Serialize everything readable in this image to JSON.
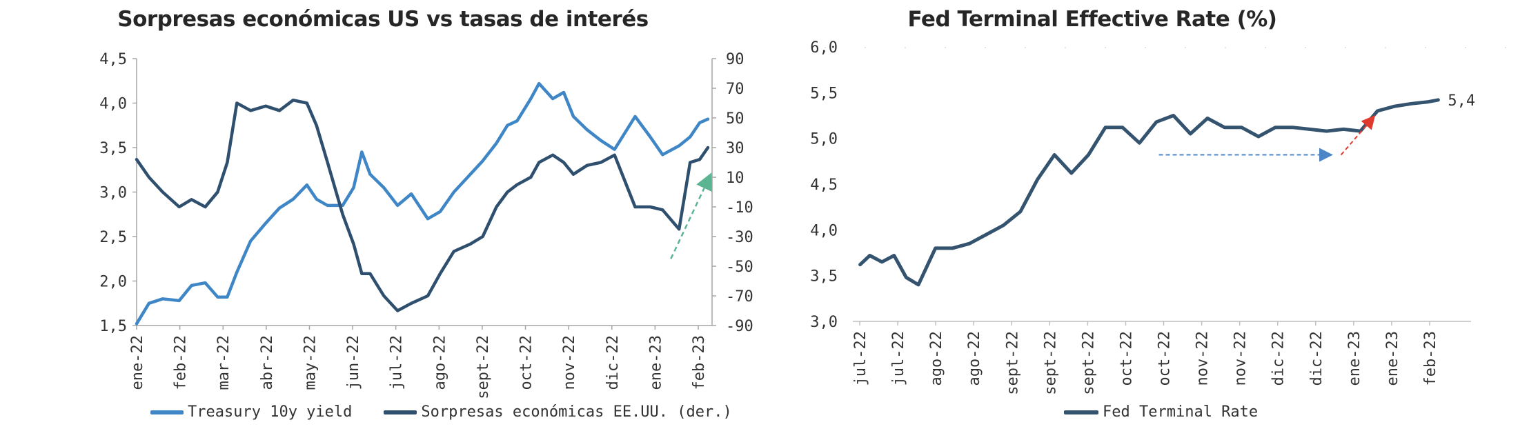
{
  "chart_data": [
    {
      "type": "line",
      "title": "Sorpresas económicas US vs tasas de interés",
      "x_ticks": [
        "ene-22",
        "feb-22",
        "mar-22",
        "abr-22",
        "may-22",
        "jun-22",
        "jul-22",
        "ago-22",
        "sept-22",
        "oct-22",
        "nov-22",
        "dic-22",
        "ene-23",
        "feb-23"
      ],
      "left_axis": {
        "ticks": [
          "1,5",
          "2,0",
          "2,5",
          "3,0",
          "3,5",
          "4,0",
          "4,5"
        ],
        "ylim": [
          1.5,
          4.5
        ]
      },
      "right_axis": {
        "ticks": [
          "-90",
          "-70",
          "-50",
          "-30",
          "-10",
          "10",
          "30",
          "50",
          "70",
          "90"
        ],
        "ylim": [
          -90,
          90
        ]
      },
      "series": [
        {
          "name": "Treasury 10y yield",
          "axis": "left",
          "color": "#3f86c6",
          "x": [
            "2022-01-01",
            "2022-01-10",
            "2022-01-20",
            "2022-02-01",
            "2022-02-10",
            "2022-02-20",
            "2022-03-01",
            "2022-03-08",
            "2022-03-15",
            "2022-03-25",
            "2022-04-05",
            "2022-04-15",
            "2022-04-25",
            "2022-05-05",
            "2022-05-12",
            "2022-05-20",
            "2022-05-31",
            "2022-06-08",
            "2022-06-14",
            "2022-06-20",
            "2022-06-30",
            "2022-07-10",
            "2022-07-20",
            "2022-08-01",
            "2022-08-10",
            "2022-08-20",
            "2022-09-01",
            "2022-09-10",
            "2022-09-20",
            "2022-09-28",
            "2022-10-05",
            "2022-10-15",
            "2022-10-21",
            "2022-10-31",
            "2022-11-08",
            "2022-11-15",
            "2022-11-25",
            "2022-12-05",
            "2022-12-15",
            "2022-12-30",
            "2023-01-10",
            "2023-01-19",
            "2023-01-31",
            "2023-02-08",
            "2023-02-15",
            "2023-02-21"
          ],
          "values": [
            1.52,
            1.75,
            1.8,
            1.78,
            1.95,
            1.98,
            1.82,
            1.82,
            2.1,
            2.45,
            2.65,
            2.82,
            2.92,
            3.08,
            2.92,
            2.85,
            2.85,
            3.05,
            3.45,
            3.2,
            3.05,
            2.85,
            2.98,
            2.7,
            2.78,
            3.0,
            3.2,
            3.35,
            3.55,
            3.75,
            3.8,
            4.05,
            4.22,
            4.05,
            4.12,
            3.85,
            3.7,
            3.58,
            3.48,
            3.85,
            3.62,
            3.42,
            3.52,
            3.62,
            3.78,
            3.82
          ]
        },
        {
          "name": "Sorpresas económicas EE.UU. (der.)",
          "axis": "right",
          "color": "#2f4f6f",
          "x": [
            "2022-01-01",
            "2022-01-10",
            "2022-01-20",
            "2022-02-01",
            "2022-02-10",
            "2022-02-20",
            "2022-03-01",
            "2022-03-08",
            "2022-03-15",
            "2022-03-25",
            "2022-04-05",
            "2022-04-15",
            "2022-04-25",
            "2022-05-05",
            "2022-05-12",
            "2022-05-20",
            "2022-05-31",
            "2022-06-08",
            "2022-06-14",
            "2022-06-20",
            "2022-06-30",
            "2022-07-10",
            "2022-07-20",
            "2022-08-01",
            "2022-08-10",
            "2022-08-20",
            "2022-09-01",
            "2022-09-10",
            "2022-09-20",
            "2022-09-28",
            "2022-10-05",
            "2022-10-15",
            "2022-10-21",
            "2022-10-31",
            "2022-11-08",
            "2022-11-15",
            "2022-11-25",
            "2022-12-05",
            "2022-12-15",
            "2022-12-30",
            "2023-01-10",
            "2023-01-19",
            "2023-01-31",
            "2023-02-08",
            "2023-02-15",
            "2023-02-21"
          ],
          "values": [
            22,
            10,
            0,
            -10,
            -5,
            -10,
            0,
            20,
            60,
            55,
            58,
            55,
            62,
            60,
            45,
            20,
            -15,
            -35,
            -55,
            -55,
            -70,
            -80,
            -75,
            -70,
            -55,
            -40,
            -35,
            -30,
            -10,
            0,
            5,
            10,
            20,
            25,
            20,
            12,
            18,
            20,
            25,
            -10,
            -10,
            -12,
            -25,
            20,
            22,
            30
          ]
        }
      ],
      "annotation": {
        "type": "arrow",
        "color": "#5cb592",
        "from": [
          "2023-01-25",
          -45
        ],
        "to": [
          "2023-02-22",
          10
        ]
      }
    },
    {
      "type": "line",
      "title": "Fed Terminal Effective Rate (%)",
      "x_ticks": [
        "jul-22",
        "jul-22",
        "ago-22",
        "ago-22",
        "sept-22",
        "sept-22",
        "sept-22",
        "oct-22",
        "oct-22",
        "nov-22",
        "nov-22",
        "dic-22",
        "dic-22",
        "ene-23",
        "ene-23",
        "feb-23"
      ],
      "y_axis": {
        "ticks": [
          "3,0",
          "3,5",
          "4,0",
          "4,5",
          "5,0",
          "5,5",
          "6,0"
        ],
        "ylim": [
          3.0,
          6.0
        ]
      },
      "series": [
        {
          "name": "Fed Terminal Rate",
          "color": "#34536f",
          "x": [
            "2022-07-01",
            "2022-07-05",
            "2022-07-10",
            "2022-07-15",
            "2022-07-20",
            "2022-07-25",
            "2022-08-01",
            "2022-08-08",
            "2022-08-15",
            "2022-08-22",
            "2022-08-29",
            "2022-09-05",
            "2022-09-12",
            "2022-09-19",
            "2022-09-26",
            "2022-10-03",
            "2022-10-10",
            "2022-10-17",
            "2022-10-24",
            "2022-10-31",
            "2022-11-07",
            "2022-11-14",
            "2022-11-21",
            "2022-11-28",
            "2022-12-05",
            "2022-12-12",
            "2022-12-19",
            "2022-12-26",
            "2023-01-02",
            "2023-01-09",
            "2023-01-16",
            "2023-01-23",
            "2023-01-30",
            "2023-02-06",
            "2023-02-13",
            "2023-02-20",
            "2023-02-24"
          ],
          "values": [
            3.62,
            3.72,
            3.65,
            3.72,
            3.48,
            3.4,
            3.8,
            3.8,
            3.85,
            3.95,
            4.05,
            4.2,
            4.55,
            4.82,
            4.62,
            4.82,
            5.12,
            5.12,
            4.95,
            5.18,
            5.25,
            5.05,
            5.22,
            5.12,
            5.12,
            5.02,
            5.12,
            5.12,
            5.1,
            5.08,
            5.1,
            5.08,
            5.3,
            5.35,
            5.38,
            5.4,
            5.42
          ]
        }
      ],
      "annotations": [
        {
          "type": "dashed-arrow",
          "color": "#4c86c6",
          "from": [
            "2022-11-01",
            4.82
          ],
          "to": [
            "2023-01-10",
            4.82
          ]
        },
        {
          "type": "dashed-arrow",
          "color": "#e03a2f",
          "from": [
            "2023-01-15",
            4.82
          ],
          "to": [
            "2023-01-28",
            5.22
          ]
        }
      ],
      "end_label": "5,4"
    }
  ]
}
